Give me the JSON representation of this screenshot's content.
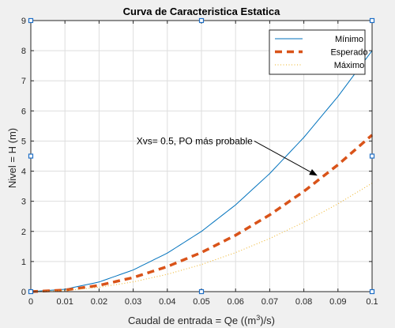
{
  "chart_data": {
    "type": "line",
    "title": "Curva de Caracteristica Estatica",
    "xlabel_pre": "Caudal de entrada = Qe ((m",
    "xlabel_sup": "3",
    "xlabel_post": ")/s)",
    "ylabel": "Nivel = H (m)",
    "xlim": [
      0,
      0.1
    ],
    "ylim": [
      0,
      9
    ],
    "xticks": [
      "0",
      "0.01",
      "0.02",
      "0.03",
      "0.04",
      "0.05",
      "0.06",
      "0.07",
      "0.08",
      "0.09",
      "0.1"
    ],
    "yticks": [
      "0",
      "1",
      "2",
      "3",
      "4",
      "5",
      "6",
      "7",
      "8",
      "9"
    ],
    "grid": true,
    "legend_position": "top-right",
    "series": [
      {
        "name": "Mínimo",
        "color": "#0072bd",
        "style": "solid",
        "x": [
          0,
          0.01,
          0.02,
          0.03,
          0.04,
          0.05,
          0.06,
          0.07,
          0.08,
          0.09,
          0.1
        ],
        "y": [
          0,
          0.08,
          0.32,
          0.72,
          1.28,
          2.0,
          2.88,
          3.92,
          5.12,
          6.48,
          8.0
        ]
      },
      {
        "name": "Esperado",
        "color": "#d95319",
        "style": "dashed",
        "x": [
          0,
          0.01,
          0.02,
          0.03,
          0.04,
          0.05,
          0.06,
          0.07,
          0.08,
          0.09,
          0.1
        ],
        "y": [
          0,
          0.052,
          0.208,
          0.468,
          0.832,
          1.3,
          1.872,
          2.548,
          3.328,
          4.212,
          5.2
        ]
      },
      {
        "name": "Máximo",
        "color": "#edb120",
        "style": "dotted",
        "x": [
          0,
          0.01,
          0.02,
          0.03,
          0.04,
          0.05,
          0.06,
          0.07,
          0.08,
          0.09,
          0.1
        ],
        "y": [
          0,
          0.036,
          0.144,
          0.324,
          0.576,
          0.9,
          1.296,
          1.764,
          2.304,
          2.916,
          3.6
        ]
      }
    ],
    "annotation": {
      "text": "Xvs= 0.5, PO más probable",
      "arrow_to": [
        0.084,
        3.85
      ],
      "arrow_from": [
        0.065,
        5.0
      ]
    }
  }
}
